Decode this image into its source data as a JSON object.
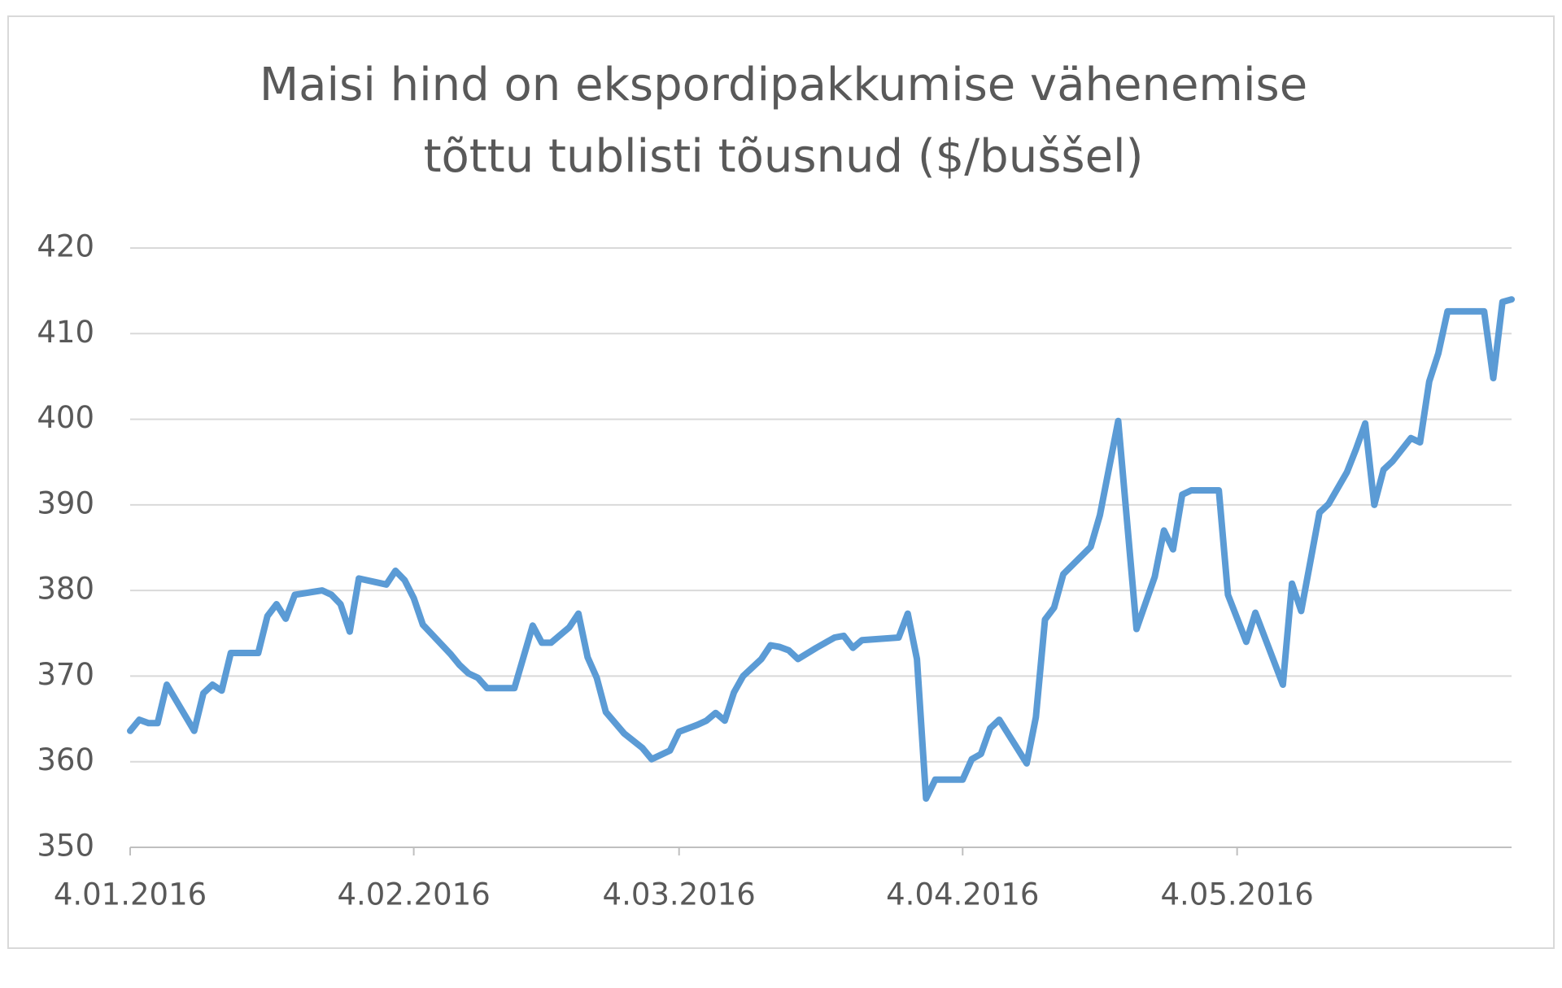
{
  "chart_data": {
    "type": "line",
    "title": [
      "Maisi hind on ekspordipakkumise vähenemise",
      "tõttu tublisti tõusnud ($/buššel)"
    ],
    "x": [
      "2016-01-04",
      "2016-01-05",
      "2016-01-06",
      "2016-01-07",
      "2016-01-08",
      "2016-01-11",
      "2016-01-12",
      "2016-01-13",
      "2016-01-14",
      "2016-01-15",
      "2016-01-18",
      "2016-01-19",
      "2016-01-20",
      "2016-01-21",
      "2016-01-22",
      "2016-01-25",
      "2016-01-26",
      "2016-01-27",
      "2016-01-28",
      "2016-01-29",
      "2016-02-01",
      "2016-02-02",
      "2016-02-03",
      "2016-02-04",
      "2016-02-05",
      "2016-02-08",
      "2016-02-09",
      "2016-02-10",
      "2016-02-11",
      "2016-02-12",
      "2016-02-15",
      "2016-02-17",
      "2016-02-18",
      "2016-02-19",
      "2016-02-21",
      "2016-02-22",
      "2016-02-23",
      "2016-02-24",
      "2016-02-25",
      "2016-02-27",
      "2016-02-29",
      "2016-03-01",
      "2016-03-03",
      "2016-03-04",
      "2016-03-06",
      "2016-03-07",
      "2016-03-08",
      "2016-03-09",
      "2016-03-10",
      "2016-03-11",
      "2016-03-13",
      "2016-03-14",
      "2016-03-15",
      "2016-03-16",
      "2016-03-17",
      "2016-03-19",
      "2016-03-21",
      "2016-03-22",
      "2016-03-23",
      "2016-03-24",
      "2016-03-28",
      "2016-03-29",
      "2016-03-30",
      "2016-03-31",
      "2016-04-01",
      "2016-04-04",
      "2016-04-05",
      "2016-04-06",
      "2016-04-07",
      "2016-04-08",
      "2016-04-11",
      "2016-04-12",
      "2016-04-13",
      "2016-04-14",
      "2016-04-15",
      "2016-04-18",
      "2016-04-19",
      "2016-04-21",
      "2016-04-23",
      "2016-04-25",
      "2016-04-26",
      "2016-04-27",
      "2016-04-28",
      "2016-04-29",
      "2016-05-02",
      "2016-05-03",
      "2016-05-05",
      "2016-05-06",
      "2016-05-09",
      "2016-05-10",
      "2016-05-11",
      "2016-05-13",
      "2016-05-14",
      "2016-05-16",
      "2016-05-17",
      "2016-05-18",
      "2016-05-19",
      "2016-05-20",
      "2016-05-21",
      "2016-05-23",
      "2016-05-24",
      "2016-05-25",
      "2016-05-26",
      "2016-05-27",
      "2016-05-31",
      "2016-06-01",
      "2016-06-02",
      "2016-06-03"
    ],
    "series": [
      {
        "color": "#5b9bd5",
        "values": [
          363.6,
          364.9,
          364.5,
          364.5,
          369.0,
          363.6,
          368.0,
          369.0,
          368.3,
          372.7,
          372.7,
          377.0,
          378.4,
          376.7,
          379.5,
          380.0,
          379.5,
          378.4,
          375.2,
          381.4,
          380.7,
          382.3,
          381.2,
          379.1,
          376.0,
          372.6,
          371.3,
          370.3,
          369.8,
          368.6,
          368.6,
          375.9,
          373.9,
          373.9,
          375.7,
          377.3,
          372.2,
          369.8,
          365.8,
          363.3,
          361.6,
          360.3,
          361.3,
          363.5,
          364.3,
          364.8,
          365.7,
          364.8,
          368.1,
          370.0,
          372.0,
          373.6,
          373.4,
          373.0,
          372.0,
          373.3,
          374.5,
          374.7,
          373.3,
          374.2,
          374.5,
          377.3,
          372.0,
          355.7,
          357.9,
          357.9,
          360.3,
          360.9,
          363.9,
          364.9,
          359.8,
          365.2,
          376.6,
          378.0,
          381.9,
          385.1,
          388.8,
          399.8,
          375.5,
          381.6,
          387.0,
          384.8,
          391.2,
          391.7,
          391.7,
          379.5,
          374.0,
          377.4,
          369.0,
          380.8,
          377.6,
          389.1,
          390.1,
          393.8,
          396.5,
          399.5,
          390.0,
          394.1,
          395.1,
          397.8,
          397.3,
          404.4,
          407.7,
          412.6,
          412.6,
          404.8,
          413.7,
          414.0
        ]
      }
    ],
    "xlim": [
      "2016-01-04",
      "2016-06-03"
    ],
    "xticks": [
      {
        "value": "2016-01-04",
        "label": "4.01.2016"
      },
      {
        "value": "2016-02-04",
        "label": "4.02.2016"
      },
      {
        "value": "2016-03-04",
        "label": "4.03.2016"
      },
      {
        "value": "2016-04-04",
        "label": "4.04.2016"
      },
      {
        "value": "2016-05-04",
        "label": "4.05.2016"
      }
    ],
    "ylim": [
      350,
      420
    ],
    "yticks": [
      350,
      360,
      370,
      380,
      390,
      400,
      410,
      420
    ],
    "grid": true
  }
}
